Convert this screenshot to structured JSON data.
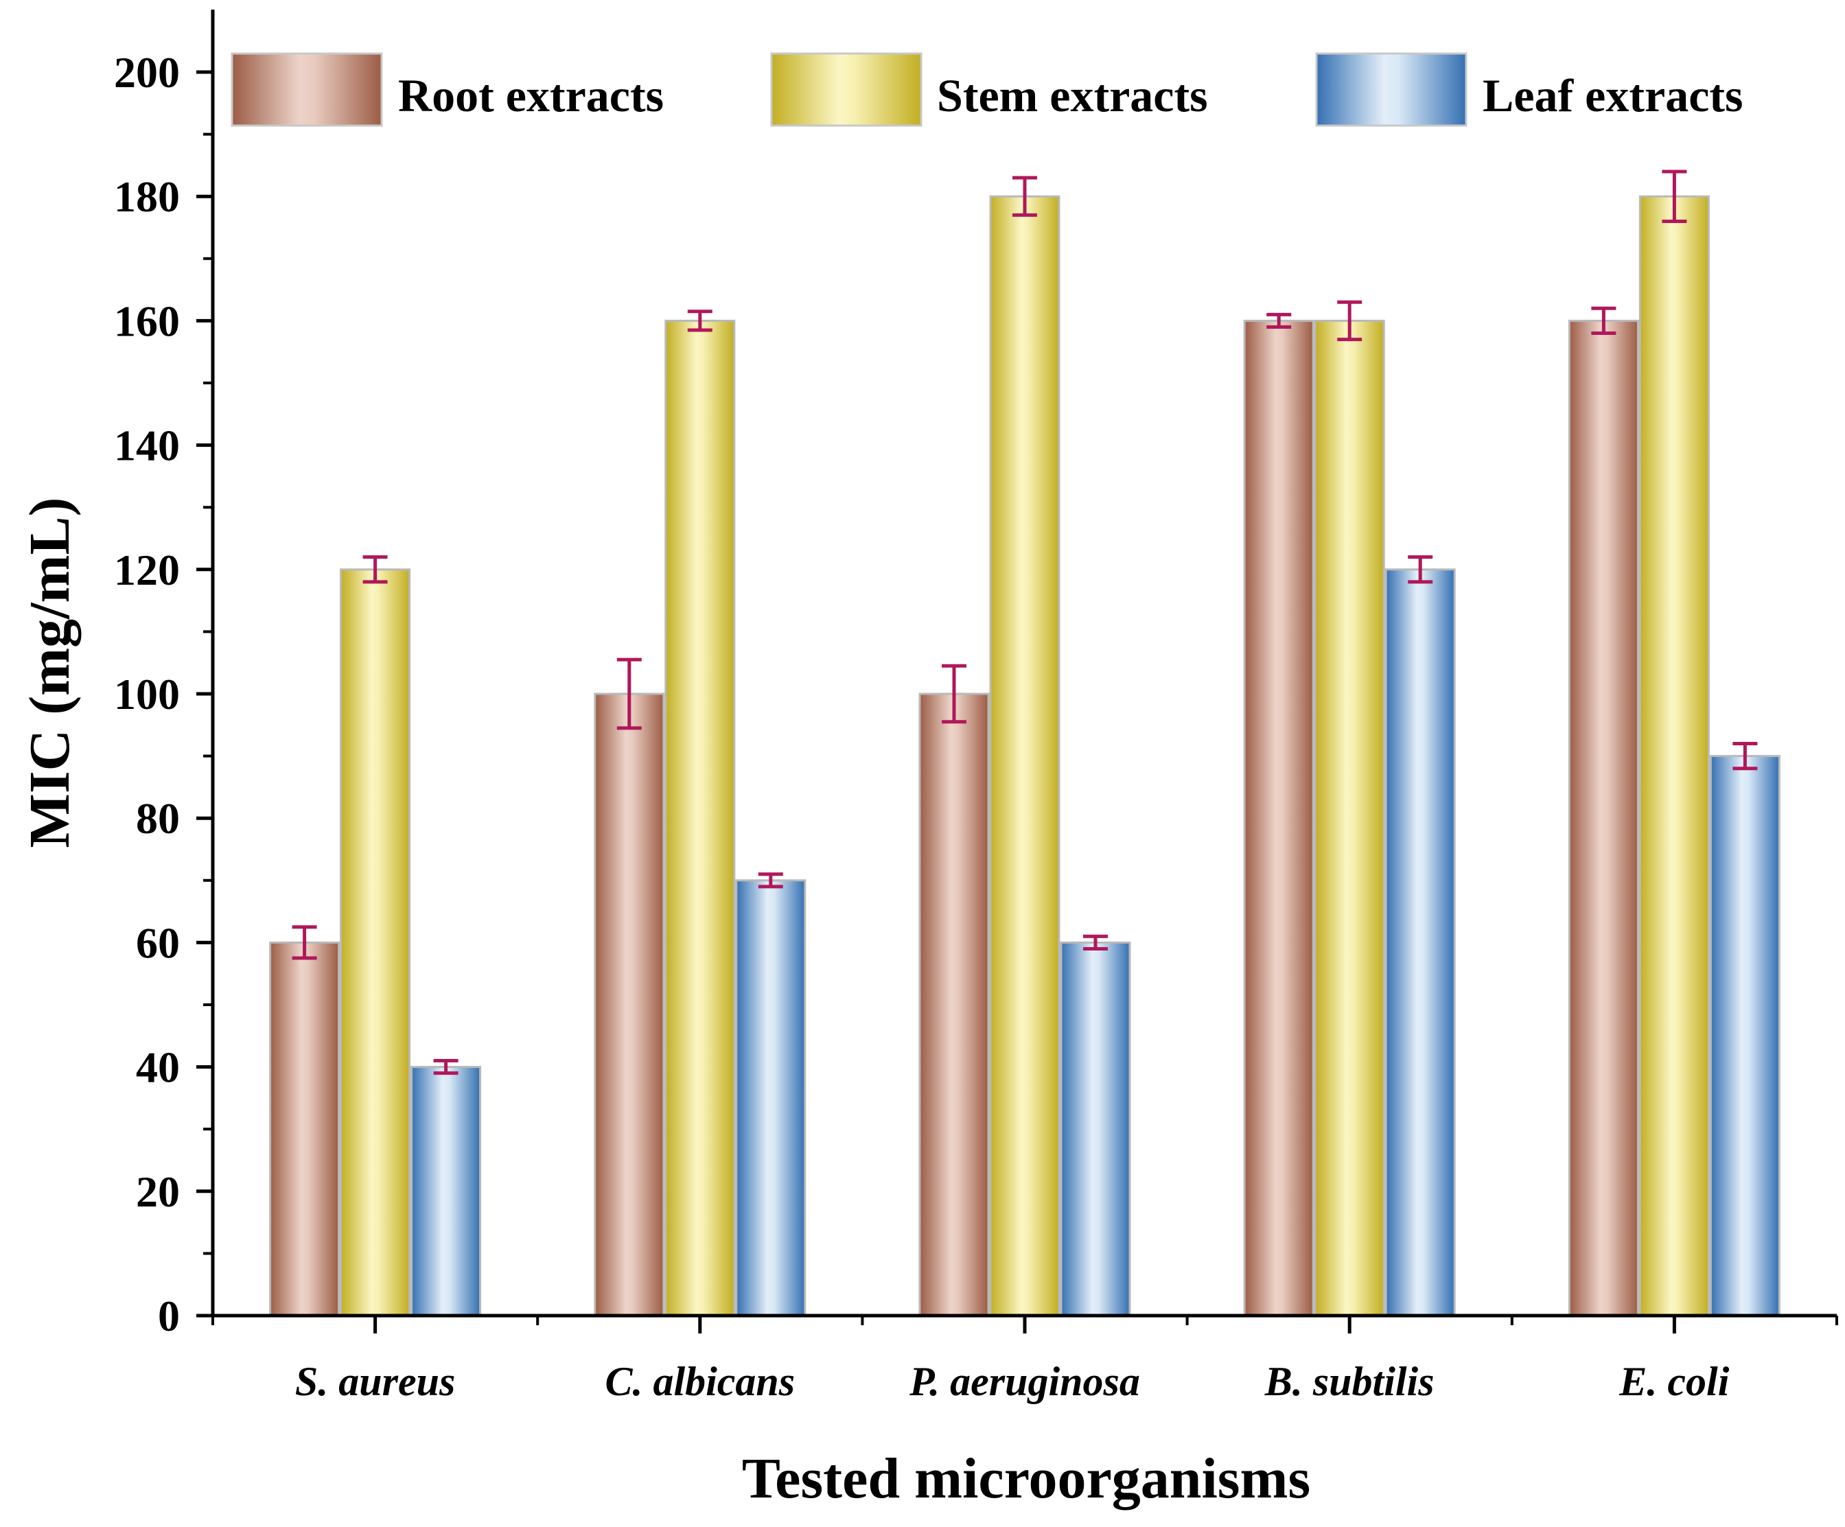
{
  "chart_data": {
    "type": "bar",
    "title": "",
    "xlabel": "Tested microorganisms",
    "ylabel": "MIC (mg/mL)",
    "ylim": [
      0,
      210
    ],
    "yticks": [
      0,
      20,
      40,
      60,
      80,
      100,
      120,
      140,
      160,
      180,
      200
    ],
    "ytick_labels": [
      "0",
      "20",
      "40",
      "60",
      "80",
      "100",
      "120",
      "140",
      "160",
      "180",
      "200"
    ],
    "categories": [
      "S. aureus",
      "C. albicans",
      "P. aeruginosa",
      "B. subtilis",
      "E. coli"
    ],
    "series": [
      {
        "name": "Root extracts",
        "values": [
          60,
          100,
          100,
          160,
          160
        ],
        "errors": [
          2.5,
          5.5,
          4.5,
          1,
          2
        ],
        "color": "#a8705a"
      },
      {
        "name": "Stem extracts",
        "values": [
          120,
          160,
          180,
          160,
          180
        ],
        "errors": [
          2,
          1.5,
          3,
          3,
          4
        ],
        "color": "#c9b832"
      },
      {
        "name": "Leaf extracts",
        "values": [
          40,
          70,
          60,
          120,
          90
        ],
        "errors": [
          1,
          1,
          1,
          2,
          2
        ],
        "color": "#3f78b8"
      }
    ],
    "error_bar_color": "#b0185a",
    "legend": {
      "position": "top",
      "orientation": "horizontal"
    },
    "grid": false
  }
}
